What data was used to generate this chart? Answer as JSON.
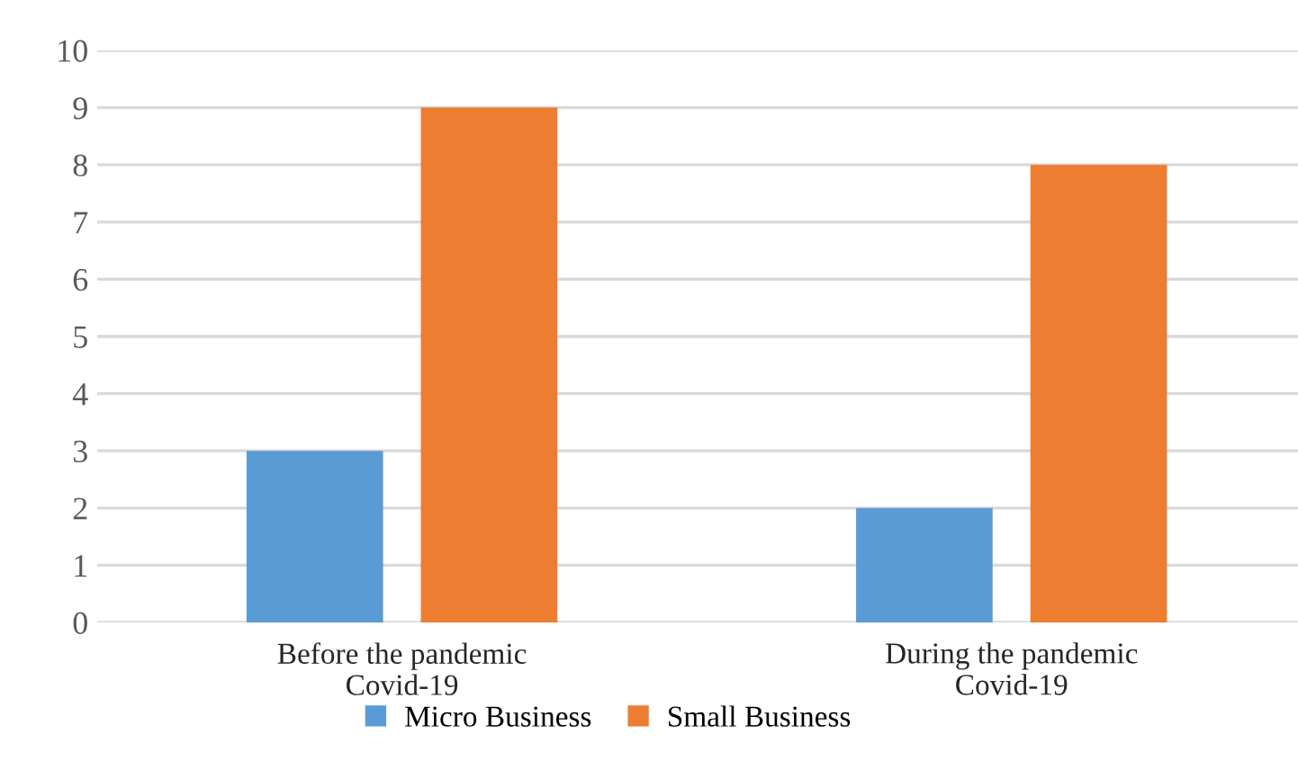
{
  "chart_data": {
    "type": "bar",
    "categories": [
      "Before the pandemic\nCovid-19",
      "During the pandemic\nCovid-19"
    ],
    "series": [
      {
        "name": "Micro Business",
        "color": "#5b9bd5",
        "values": [
          3,
          2
        ]
      },
      {
        "name": "Small Business",
        "color": "#ed7d31",
        "values": [
          9,
          8
        ]
      }
    ],
    "ylim": [
      0,
      10
    ],
    "yticks": [
      0,
      1,
      2,
      3,
      4,
      5,
      6,
      7,
      8,
      9,
      10
    ],
    "grid": "y",
    "legend": "bottom"
  }
}
